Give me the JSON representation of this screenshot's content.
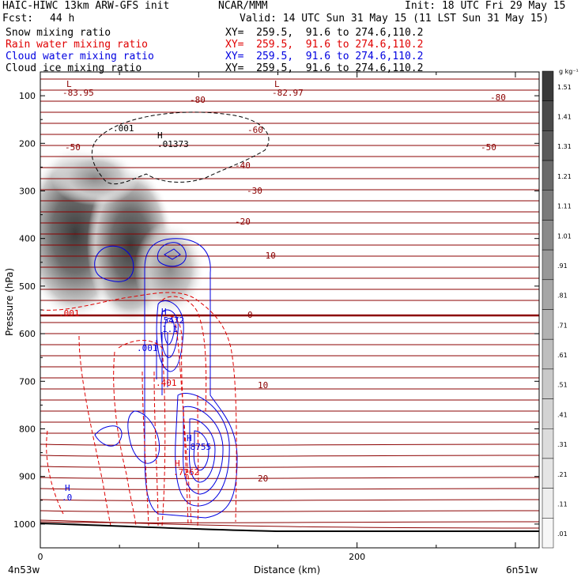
{
  "header": {
    "title_left": "HAIC-HIWC 13km ARW-GFS init",
    "center_org": "NCAR/MMM",
    "init": "Init: 18 UTC Fri 29 May 15",
    "fcst_label": "Fcst:",
    "fcst_value": "44 h",
    "valid": "Valid: 14 UTC Sun 31 May 15 (11 LST Sun 31 May 15)"
  },
  "fields": [
    {
      "name": "Snow mixing ratio",
      "xy": "XY=  259.5,  91.6 to 274.6,110.2",
      "color": "#000000"
    },
    {
      "name": "Rain water mixing ratio",
      "xy": "XY=  259.5,  91.6 to 274.6,110.2",
      "color": "#e00000"
    },
    {
      "name": "Cloud water mixing ratio",
      "xy": "XY=  259.5,  91.6 to 274.6,110.2",
      "color": "#0000e0"
    },
    {
      "name": "Cloud ice mixing ratio",
      "xy": "XY=  259.5,  91.6 to 274.6,110.2",
      "color": "#000000"
    }
  ],
  "chart_data": {
    "type": "heatmap",
    "ylabel": "Pressure (hPa)",
    "xlabel": "Distance (km)",
    "x_left_label": "4n53w",
    "x_right_label": "6n51w",
    "y_ticks": [
      100,
      200,
      300,
      400,
      500,
      600,
      700,
      800,
      900,
      1000
    ],
    "x_ticks": [
      0,
      200
    ],
    "ylim": [
      1050,
      50
    ],
    "xlim": [
      0,
      315
    ],
    "colorbar": {
      "units": "g kg⁻¹",
      "labels": [
        "1.51",
        "1.41",
        "1.31",
        "1.21",
        "1.11",
        "1.01",
        ".91",
        ".81",
        ".71",
        ".61",
        ".51",
        ".41",
        ".31",
        ".21",
        ".11",
        ".01"
      ],
      "colors": [
        "#3a3a3a",
        "#4a4a4a",
        "#5a5a5a",
        "#6a6a6a",
        "#7a7a7a",
        "#8a8a8a",
        "#989898",
        "#a6a6a6",
        "#b2b2b2",
        "#bebebe",
        "#c9c9c9",
        "#d3d3d3",
        "#dcdcdc",
        "#e5e5e5",
        "#eeeeee",
        "#f7f7f7"
      ]
    },
    "temperature_labels": [
      "-80",
      "-80",
      "-60",
      "-50",
      "-50",
      "-40",
      "-30",
      "-20",
      "-10",
      "0",
      "10",
      "20"
    ],
    "extrema_labels": [
      {
        "kind": "L",
        "value": "-83.95"
      },
      {
        "kind": "L",
        "value": "-82.97"
      },
      {
        "kind": "H",
        "value": ".01373"
      },
      {
        "kind": "H",
        "value": ".5472"
      },
      {
        "kind": "H",
        "value": ".8755"
      },
      {
        "kind": "H",
        "value": ".7262"
      },
      {
        "kind": "H",
        "value": ".0"
      }
    ],
    "contour_labels": [
      ".001",
      ".001",
      ".001",
      ".401",
      "1.1"
    ]
  }
}
